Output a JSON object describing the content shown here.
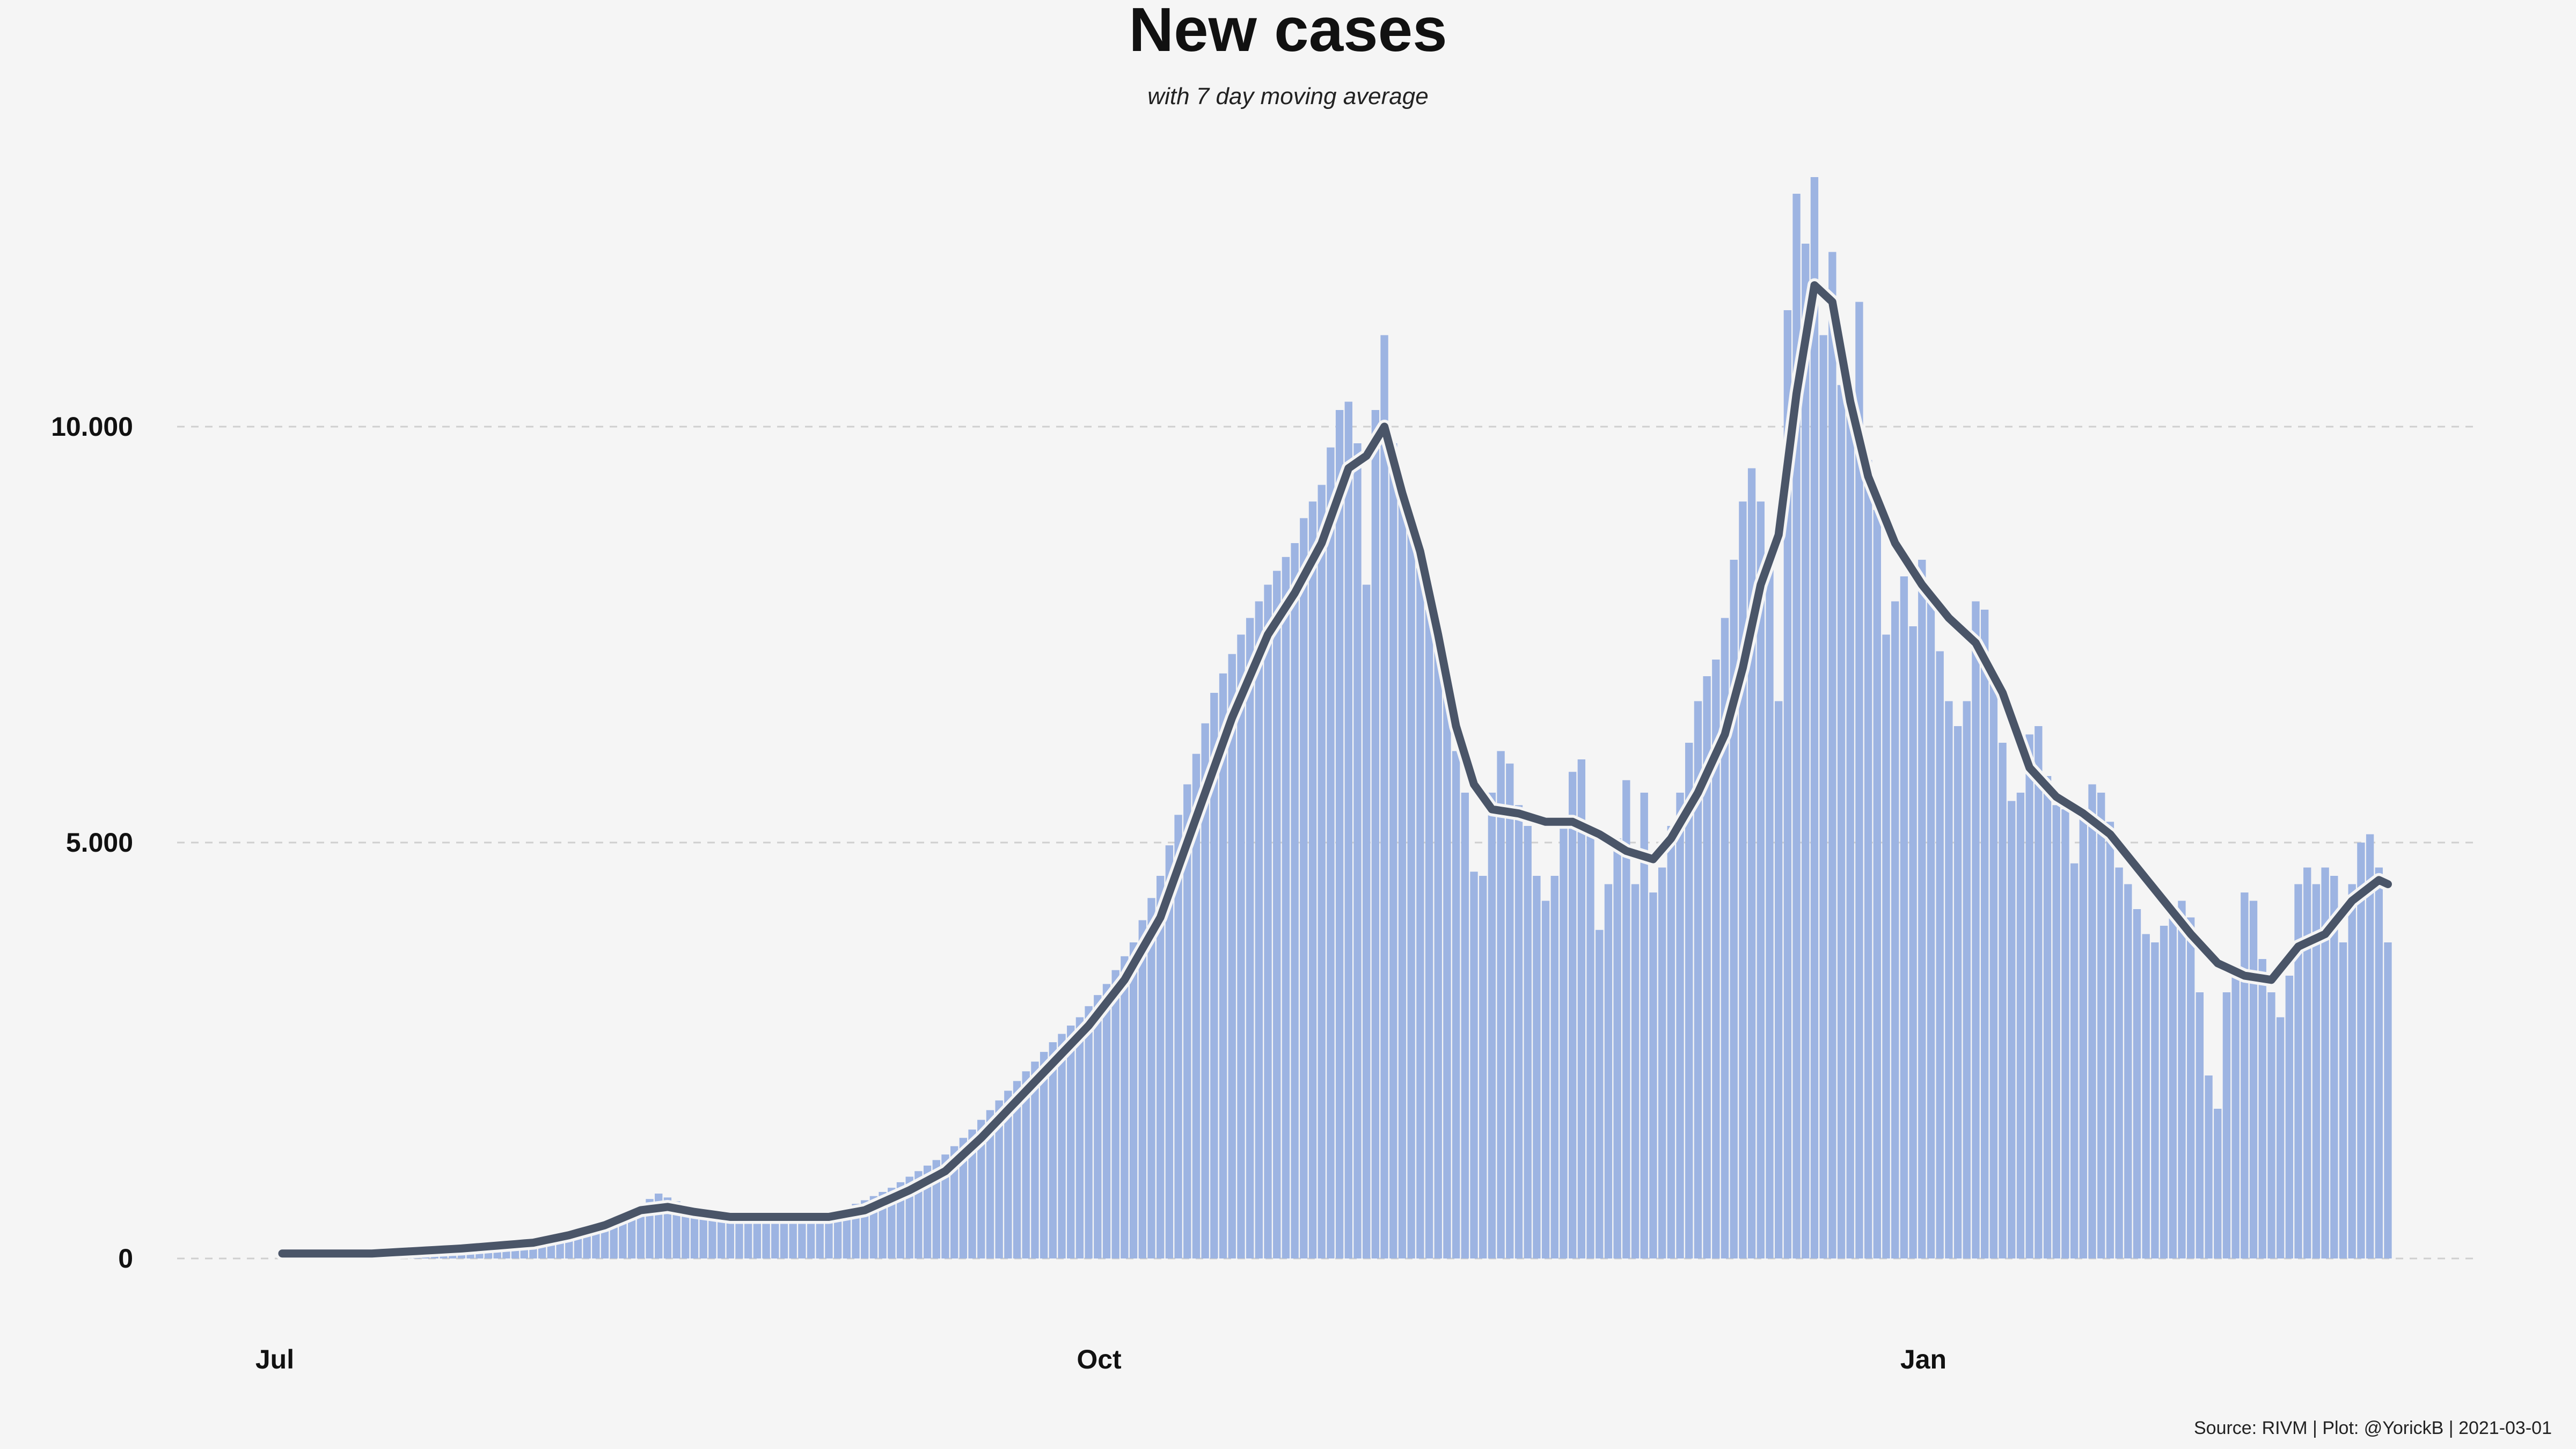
{
  "chart_data": {
    "type": "bar",
    "title": "New cases",
    "subtitle": "with 7 day moving average",
    "caption": "Source: RIVM | Plot: @YorickB |  2021-03-01",
    "xlabel": "",
    "ylabel": "",
    "ylim": [
      0,
      13000
    ],
    "x_domain_days": [
      0,
      246
    ],
    "x_ticks": [
      {
        "day": 0,
        "label": "Jul"
      },
      {
        "day": 92,
        "label": "Oct"
      },
      {
        "day": 184,
        "label": "Jan"
      }
    ],
    "y_ticks": [
      {
        "value": 0,
        "label": "0"
      },
      {
        "value": 5000,
        "label": "5.000"
      },
      {
        "value": 10000,
        "label": "10.000"
      }
    ],
    "grid": true,
    "bar_color": "#9db4e2",
    "line_color": "#4a5568",
    "series": [
      {
        "name": "New cases",
        "anchors": [
          [
            0,
            60
          ],
          [
            5,
            60
          ],
          [
            10,
            80
          ],
          [
            15,
            100
          ],
          [
            20,
            140
          ],
          [
            25,
            180
          ],
          [
            28,
            220
          ],
          [
            30,
            260
          ],
          [
            33,
            340
          ],
          [
            36,
            450
          ],
          [
            38,
            530
          ],
          [
            40,
            650
          ],
          [
            42,
            780
          ],
          [
            45,
            640
          ],
          [
            48,
            540
          ],
          [
            51,
            500
          ],
          [
            54,
            510
          ],
          [
            57,
            500
          ],
          [
            60,
            520
          ],
          [
            62,
            570
          ],
          [
            65,
            700
          ],
          [
            68,
            850
          ],
          [
            71,
            1050
          ],
          [
            74,
            1250
          ],
          [
            77,
            1550
          ],
          [
            80,
            1900
          ],
          [
            83,
            2250
          ],
          [
            86,
            2600
          ],
          [
            89,
            2900
          ],
          [
            92,
            3300
          ],
          [
            95,
            3800
          ],
          [
            98,
            4600
          ],
          [
            101,
            5700
          ],
          [
            104,
            6800
          ],
          [
            107,
            7500
          ],
          [
            110,
            8100
          ],
          [
            113,
            8600
          ],
          [
            114,
            8900
          ],
          [
            116,
            9300
          ],
          [
            118,
            10200
          ],
          [
            119,
            10300
          ],
          [
            120,
            9800
          ],
          [
            121,
            8100
          ],
          [
            122,
            10200
          ],
          [
            123,
            11100
          ],
          [
            124,
            9800
          ],
          [
            126,
            8800
          ],
          [
            128,
            7800
          ],
          [
            130,
            6900
          ],
          [
            131,
            6100
          ],
          [
            132,
            5600
          ],
          [
            133,
            4650
          ],
          [
            134,
            4600
          ],
          [
            135,
            5600
          ],
          [
            136,
            6100
          ],
          [
            137,
            5950
          ],
          [
            138,
            5450
          ],
          [
            139,
            5200
          ],
          [
            140,
            4600
          ],
          [
            141,
            4300
          ],
          [
            142,
            4600
          ],
          [
            143,
            5300
          ],
          [
            144,
            5850
          ],
          [
            145,
            6000
          ],
          [
            146,
            5100
          ],
          [
            147,
            3950
          ],
          [
            148,
            4500
          ],
          [
            149,
            5050
          ],
          [
            150,
            5750
          ],
          [
            151,
            4500
          ],
          [
            152,
            5600
          ],
          [
            153,
            4400
          ],
          [
            154,
            4700
          ],
          [
            155,
            5200
          ],
          [
            156,
            5600
          ],
          [
            157,
            6200
          ],
          [
            158,
            6700
          ],
          [
            159,
            7000
          ],
          [
            160,
            7200
          ],
          [
            161,
            7700
          ],
          [
            162,
            8400
          ],
          [
            163,
            9100
          ],
          [
            164,
            9500
          ],
          [
            165,
            9100
          ],
          [
            166,
            8500
          ],
          [
            167,
            6700
          ],
          [
            168,
            11400
          ],
          [
            169,
            12800
          ],
          [
            170,
            12200
          ],
          [
            171,
            13000
          ],
          [
            172,
            11100
          ],
          [
            173,
            12100
          ],
          [
            174,
            10500
          ],
          [
            175,
            10500
          ],
          [
            176,
            11500
          ],
          [
            177,
            9600
          ],
          [
            178,
            9000
          ],
          [
            179,
            7500
          ],
          [
            180,
            7900
          ],
          [
            181,
            8200
          ],
          [
            182,
            7600
          ],
          [
            183,
            8400
          ],
          [
            184,
            8000
          ],
          [
            185,
            7300
          ],
          [
            186,
            6700
          ],
          [
            187,
            6400
          ],
          [
            188,
            6700
          ],
          [
            189,
            7900
          ],
          [
            190,
            7800
          ],
          [
            191,
            7000
          ],
          [
            192,
            6200
          ],
          [
            193,
            5500
          ],
          [
            194,
            5600
          ],
          [
            195,
            6300
          ],
          [
            196,
            6400
          ],
          [
            197,
            5800
          ],
          [
            198,
            5450
          ],
          [
            199,
            5400
          ],
          [
            200,
            4750
          ],
          [
            201,
            5400
          ],
          [
            202,
            5700
          ],
          [
            203,
            5600
          ],
          [
            204,
            5250
          ],
          [
            205,
            4700
          ],
          [
            206,
            4500
          ],
          [
            207,
            4200
          ],
          [
            208,
            3900
          ],
          [
            209,
            3800
          ],
          [
            210,
            4000
          ],
          [
            211,
            4200
          ],
          [
            212,
            4300
          ],
          [
            213,
            4100
          ],
          [
            214,
            3200
          ],
          [
            215,
            2200
          ],
          [
            216,
            1800
          ],
          [
            217,
            3200
          ],
          [
            218,
            3400
          ],
          [
            219,
            4400
          ],
          [
            220,
            4300
          ],
          [
            221,
            3600
          ],
          [
            222,
            3200
          ],
          [
            223,
            2900
          ],
          [
            224,
            3400
          ],
          [
            225,
            4500
          ],
          [
            226,
            4700
          ],
          [
            227,
            4500
          ],
          [
            228,
            4700
          ],
          [
            229,
            4600
          ],
          [
            230,
            3800
          ],
          [
            231,
            4500
          ],
          [
            232,
            5000
          ],
          [
            233,
            5100
          ],
          [
            234,
            4700
          ],
          [
            235,
            3800
          ]
        ]
      },
      {
        "name": "7 day moving average",
        "anchors": [
          [
            0,
            60
          ],
          [
            10,
            60
          ],
          [
            20,
            120
          ],
          [
            28,
            190
          ],
          [
            32,
            280
          ],
          [
            36,
            400
          ],
          [
            40,
            580
          ],
          [
            43,
            620
          ],
          [
            46,
            560
          ],
          [
            50,
            500
          ],
          [
            56,
            500
          ],
          [
            61,
            500
          ],
          [
            65,
            580
          ],
          [
            70,
            820
          ],
          [
            74,
            1050
          ],
          [
            78,
            1450
          ],
          [
            82,
            1900
          ],
          [
            86,
            2350
          ],
          [
            90,
            2800
          ],
          [
            94,
            3350
          ],
          [
            98,
            4100
          ],
          [
            102,
            5300
          ],
          [
            106,
            6500
          ],
          [
            110,
            7500
          ],
          [
            113,
            8000
          ],
          [
            116,
            8600
          ],
          [
            119,
            9500
          ],
          [
            121,
            9650
          ],
          [
            123,
            10000
          ],
          [
            125,
            9200
          ],
          [
            127,
            8500
          ],
          [
            129,
            7500
          ],
          [
            131,
            6400
          ],
          [
            133,
            5700
          ],
          [
            135,
            5400
          ],
          [
            138,
            5350
          ],
          [
            141,
            5250
          ],
          [
            144,
            5250
          ],
          [
            147,
            5100
          ],
          [
            150,
            4900
          ],
          [
            153,
            4800
          ],
          [
            155,
            5050
          ],
          [
            158,
            5600
          ],
          [
            161,
            6300
          ],
          [
            163,
            7100
          ],
          [
            165,
            8100
          ],
          [
            167,
            8700
          ],
          [
            169,
            10400
          ],
          [
            171,
            11700
          ],
          [
            173,
            11500
          ],
          [
            175,
            10300
          ],
          [
            177,
            9400
          ],
          [
            180,
            8600
          ],
          [
            183,
            8100
          ],
          [
            186,
            7700
          ],
          [
            189,
            7400
          ],
          [
            192,
            6800
          ],
          [
            195,
            5900
          ],
          [
            198,
            5550
          ],
          [
            201,
            5350
          ],
          [
            204,
            5100
          ],
          [
            207,
            4700
          ],
          [
            210,
            4300
          ],
          [
            213,
            3900
          ],
          [
            216,
            3550
          ],
          [
            219,
            3400
          ],
          [
            222,
            3350
          ],
          [
            225,
            3750
          ],
          [
            228,
            3900
          ],
          [
            231,
            4300
          ],
          [
            234,
            4550
          ],
          [
            235,
            4500
          ]
        ]
      }
    ]
  }
}
